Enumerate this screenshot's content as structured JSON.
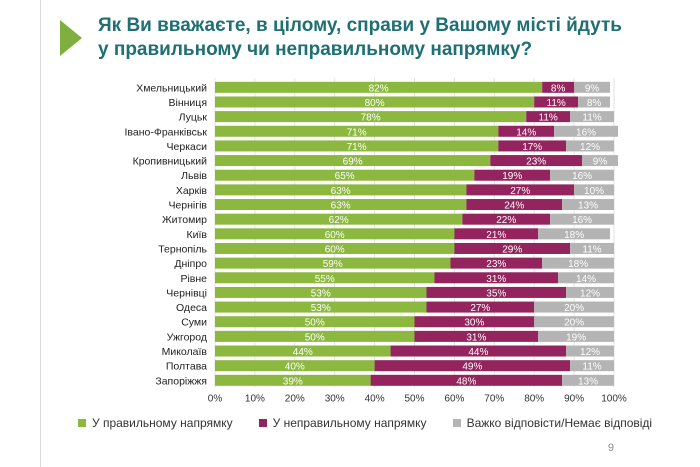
{
  "title": {
    "line1": "Як Ви вважаєте, в цілому, справи у Вашому місті йдуть",
    "line2": "у правильному чи неправильному напрямку?"
  },
  "page_number": "9",
  "colors": {
    "right": "#8cb840",
    "wrong": "#93245d",
    "unsure": "#b4b4b4",
    "title": "#1f6f73"
  },
  "chart_data": {
    "type": "bar",
    "orientation": "horizontal",
    "stacked": true,
    "categories": [
      "Хмельницький",
      "Вінниця",
      "Луцьк",
      "Івано-Франківськ",
      "Черкаси",
      "Кропивницький",
      "Львів",
      "Харків",
      "Чернігів",
      "Житомир",
      "Київ",
      "Тернопіль",
      "Дніпро",
      "Рівне",
      "Чернівці",
      "Одеса",
      "Суми",
      "Ужгород",
      "Миколаїв",
      "Полтава",
      "Запоріжжя"
    ],
    "series": [
      {
        "name": "У правильному напрямку",
        "color": "#8cb840",
        "values": [
          82,
          80,
          78,
          71,
          71,
          69,
          65,
          63,
          63,
          62,
          60,
          60,
          59,
          55,
          53,
          53,
          50,
          50,
          44,
          40,
          39
        ],
        "labels": [
          "82%",
          "80%",
          "78%",
          "71%",
          "71%",
          "69%",
          "65%",
          "63%",
          "63%",
          "62%",
          "60%",
          "60%",
          "59%",
          "55%",
          "53%",
          "53%",
          "50%",
          "50%",
          "44%",
          "40%",
          "39%"
        ]
      },
      {
        "name": "У неправильному напрямку",
        "color": "#93245d",
        "values": [
          8,
          11,
          11,
          14,
          17,
          23,
          19,
          27,
          24,
          22,
          21,
          29,
          23,
          31,
          35,
          27,
          30,
          31,
          44,
          49,
          48
        ],
        "labels": [
          "8%",
          "11%",
          "11%",
          "14%",
          "17%",
          "23%",
          "19%",
          "27%",
          "24%",
          "22%",
          "21%",
          "29%",
          "23%",
          "31%",
          "35%",
          "27%",
          "30%",
          "31%",
          "44%",
          "49%",
          "48%"
        ]
      },
      {
        "name": "Важко відповісти/Немає відповіді",
        "color": "#b4b4b4",
        "values": [
          9,
          8,
          11,
          16,
          12,
          9,
          16,
          10,
          13,
          16,
          18,
          11,
          18,
          14,
          12,
          20,
          20,
          19,
          12,
          11,
          13
        ],
        "labels": [
          "9%",
          "8%",
          "11%",
          "16%",
          "12%",
          "9%",
          "16%",
          "10%",
          "13%",
          "16%",
          "18%",
          "11%",
          "18%",
          "14%",
          "12%",
          "20%",
          "20%",
          "19%",
          "12%",
          "11%",
          "13%"
        ]
      }
    ],
    "xlim": [
      0,
      100
    ],
    "xticks": [
      "0%",
      "10%",
      "20%",
      "30%",
      "40%",
      "50%",
      "60%",
      "70%",
      "80%",
      "90%",
      "100%"
    ],
    "grid": true,
    "legend": "bottom"
  }
}
